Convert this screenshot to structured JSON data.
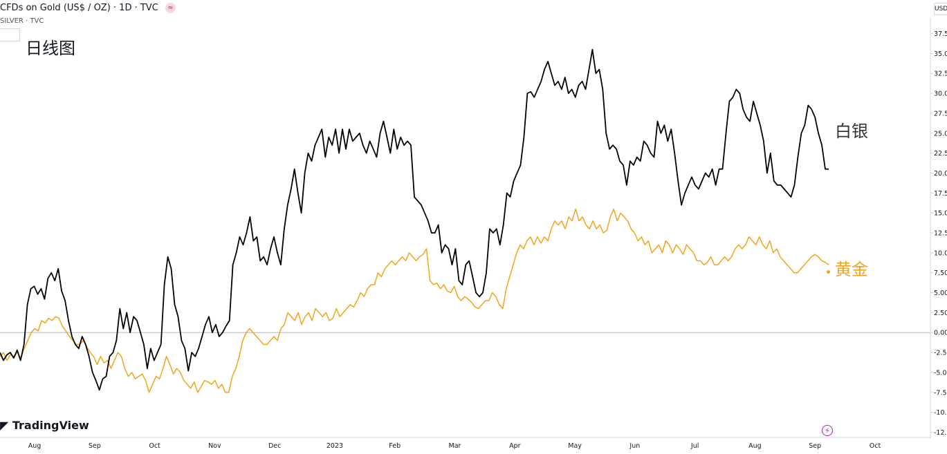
{
  "header": {
    "line1": "CFDs on Gold (US$ / OZ) · 1D · TVC",
    "fx_badge": "≈",
    "line2": "SILVER · TVC"
  },
  "title_cn": "日线图",
  "brand": "TradingView",
  "currency": "USD",
  "labels": {
    "silver": "白银",
    "gold": "黄金"
  },
  "colors": {
    "silver": "#000000",
    "gold": "#f4a31a",
    "zero_line": "#b2b5be"
  },
  "chart_data": {
    "type": "line",
    "ylabel_unit": "%",
    "ylim": [
      -13.5,
      38.5
    ],
    "y_ticks": [
      37.5,
      35,
      32.5,
      30,
      27.5,
      25,
      22.5,
      20,
      17.5,
      15,
      12.5,
      10,
      7.5,
      5,
      2.5,
      0,
      -2.5,
      -5,
      -7.5,
      -10,
      -12.5
    ],
    "y_tick_labels": [
      "37.5",
      "35.0",
      "32.5",
      "30.0",
      "27.5",
      "25.0",
      "22.5",
      "20.0",
      "17.5",
      "15.0",
      "12.5",
      "10.0",
      "7.50",
      "5.00",
      "2.50",
      "0.00",
      "-2.5",
      "-5.0",
      "-7.5",
      "-10.",
      "-12."
    ],
    "x_tick_labels": [
      "Aug",
      "Sep",
      "Oct",
      "Nov",
      "Dec",
      "2023",
      "Feb",
      "Mar",
      "Apr",
      "May",
      "Jun",
      "Jul",
      "Aug",
      "Sep",
      "Oct"
    ],
    "series": [
      {
        "name": "白银",
        "values": [
          -2.5,
          -3.5,
          -2.8,
          -2.5,
          -3.2,
          -2.2,
          -3.5,
          -1.5,
          3.5,
          5.5,
          5.8,
          4.8,
          5.5,
          4.2,
          6.8,
          7.5,
          6.5,
          8.0,
          5.2,
          4.0,
          1.5,
          -0.5,
          -1.5,
          -2.0,
          -0.5,
          -1.5,
          -3.0,
          -5.0,
          -6.0,
          -7.2,
          -5.8,
          -5.5,
          -3.0,
          -2.5,
          -1.0,
          3.0,
          0.5,
          2.5,
          0.0,
          2.0,
          1.5,
          0.0,
          -1.5,
          -4.5,
          -2.0,
          -3.5,
          -2.5,
          -1.5,
          6.0,
          9.5,
          8.0,
          3.5,
          2.0,
          -1.0,
          -2.0,
          -4.8,
          -2.5,
          -3.0,
          -2.0,
          -0.5,
          1.0,
          2.0,
          0.0,
          1.0,
          -0.5,
          0.0,
          0.8,
          1.5,
          8.5,
          10.0,
          12.0,
          11.0,
          12.5,
          14.5,
          11.5,
          12.0,
          9.0,
          9.5,
          8.5,
          10.5,
          12.0,
          10.0,
          8.5,
          13.0,
          16.0,
          18.0,
          20.5,
          17.5,
          15.0,
          20.0,
          22.5,
          21.5,
          23.5,
          24.5,
          25.5,
          22.0,
          24.5,
          23.5,
          25.5,
          22.5,
          25.5,
          23.0,
          25.5,
          24.0,
          24.5,
          25.0,
          23.5,
          22.5,
          24.0,
          23.0,
          22.0,
          25.0,
          26.5,
          24.5,
          22.5,
          25.5,
          23.0,
          24.5,
          23.5,
          24.0,
          23.5,
          17.0,
          16.5,
          16.0,
          15.0,
          14.0,
          12.5,
          12.5,
          13.5,
          10.0,
          11.0,
          10.5,
          8.5,
          10.5,
          6.5,
          6.0,
          8.5,
          9.0,
          7.0,
          5.0,
          4.5,
          5.0,
          7.5,
          13.0,
          12.5,
          13.0,
          11.0,
          13.5,
          17.5,
          17.0,
          19.0,
          20.0,
          21.0,
          24.5,
          30.0,
          30.2,
          29.5,
          30.5,
          31.5,
          33.0,
          34.0,
          32.5,
          31.0,
          31.5,
          30.5,
          32.0,
          30.0,
          30.5,
          29.5,
          31.0,
          31.5,
          30.5,
          33.0,
          35.5,
          32.5,
          33.0,
          30.5,
          25.0,
          23.0,
          23.5,
          23.0,
          21.5,
          21.0,
          18.5,
          21.5,
          21.0,
          22.0,
          21.5,
          24.0,
          23.5,
          22.5,
          22.0,
          26.5,
          25.0,
          26.0,
          24.0,
          25.5,
          22.5,
          19.0,
          16.0,
          17.5,
          18.5,
          19.5,
          18.5,
          18.0,
          19.0,
          20.0,
          19.5,
          20.5,
          18.5,
          20.5,
          20.5,
          25.0,
          29.0,
          29.5,
          30.5,
          30.0,
          28.0,
          27.0,
          26.5,
          29.0,
          27.5,
          26.0,
          24.0,
          20.0,
          22.5,
          19.0,
          18.5,
          18.5,
          18.0,
          17.5,
          17.0,
          18.5,
          22.0,
          25.0,
          26.0,
          28.5,
          28.0,
          27.0,
          25.0,
          23.5,
          20.5,
          20.5
        ]
      },
      {
        "name": "黄金",
        "values": [
          -3.0,
          -2.5,
          -3.5,
          -2.8,
          -3.0,
          -2.5,
          -3.2,
          -2.0,
          -1.0,
          0.0,
          0.5,
          0.2,
          1.5,
          1.2,
          1.8,
          1.5,
          2.0,
          1.8,
          0.8,
          0.2,
          -0.5,
          -1.0,
          -1.5,
          -1.5,
          -1.0,
          -1.8,
          -2.5,
          -3.0,
          -4.0,
          -3.0,
          -3.8,
          -3.5,
          -4.5,
          -3.5,
          -2.5,
          -3.0,
          -4.5,
          -5.5,
          -5.0,
          -5.8,
          -5.5,
          -5.2,
          -6.0,
          -7.5,
          -6.5,
          -5.5,
          -5.8,
          -4.5,
          -3.0,
          -4.0,
          -5.2,
          -4.5,
          -5.0,
          -6.0,
          -6.5,
          -7.0,
          -6.2,
          -7.5,
          -6.8,
          -6.0,
          -6.2,
          -6.5,
          -6.0,
          -7.0,
          -6.5,
          -7.5,
          -7.5,
          -5.5,
          -4.5,
          -3.0,
          -1.0,
          0.0,
          0.5,
          0.0,
          -0.5,
          -1.0,
          -1.5,
          -1.5,
          -1.0,
          -0.5,
          -1.0,
          0.5,
          1.0,
          2.5,
          2.0,
          1.5,
          2.5,
          1.0,
          2.0,
          2.5,
          1.5,
          3.0,
          2.5,
          2.0,
          2.5,
          1.5,
          1.8,
          3.0,
          2.0,
          2.5,
          3.0,
          3.5,
          3.2,
          4.0,
          5.0,
          4.5,
          5.5,
          6.0,
          6.0,
          7.5,
          7.0,
          8.0,
          8.5,
          9.0,
          8.5,
          9.0,
          9.5,
          9.0,
          10.0,
          9.5,
          9.0,
          9.5,
          9.8,
          10.5,
          6.5,
          6.0,
          6.2,
          5.5,
          6.0,
          5.2,
          5.0,
          5.8,
          4.5,
          4.0,
          4.5,
          4.2,
          3.8,
          3.2,
          3.0,
          3.5,
          4.0,
          4.0,
          5.0,
          4.5,
          3.5,
          3.0,
          5.5,
          7.0,
          8.5,
          10.0,
          11.0,
          10.5,
          11.5,
          12.0,
          11.0,
          12.0,
          11.2,
          12.0,
          11.5,
          13.0,
          14.0,
          13.5,
          14.0,
          13.0,
          14.5,
          14.0,
          15.5,
          14.0,
          14.5,
          13.5,
          13.0,
          14.0,
          13.0,
          13.5,
          12.5,
          12.8,
          14.5,
          15.5,
          14.0,
          15.0,
          14.5,
          14.0,
          13.0,
          12.5,
          11.5,
          12.0,
          11.0,
          11.5,
          10.0,
          10.5,
          11.0,
          10.0,
          11.5,
          11.0,
          10.0,
          11.0,
          10.5,
          9.8,
          11.0,
          10.5,
          10.0,
          9.0,
          9.0,
          8.5,
          8.8,
          9.5,
          8.5,
          8.5,
          9.0,
          9.5,
          9.0,
          9.5,
          10.5,
          11.0,
          10.5,
          11.0,
          12.0,
          11.5,
          11.0,
          12.0,
          11.0,
          10.5,
          11.5,
          10.0,
          10.5,
          9.5,
          9.0,
          8.5,
          8.0,
          7.5,
          7.5,
          8.0,
          8.5,
          9.0,
          9.5,
          9.8,
          9.5,
          9.0,
          8.8,
          8.5
        ]
      }
    ]
  }
}
